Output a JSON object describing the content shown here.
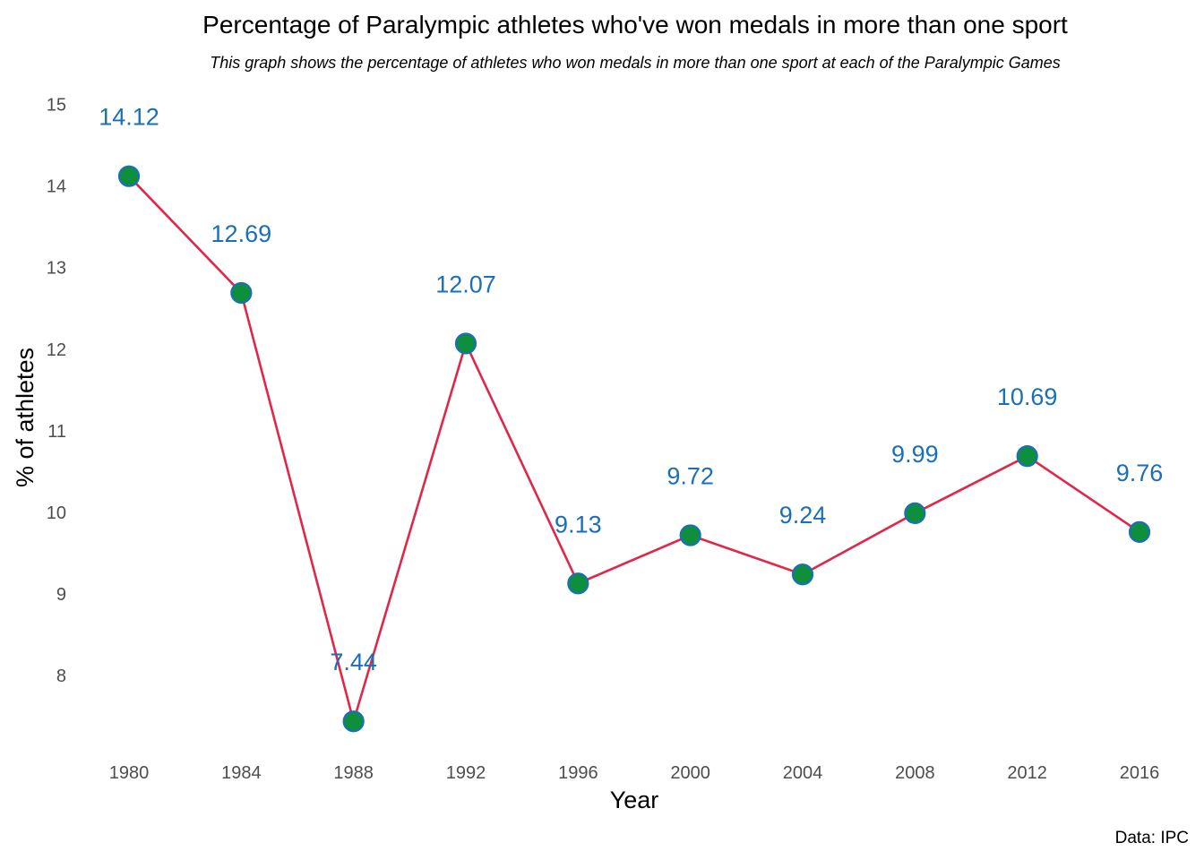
{
  "chart_data": {
    "type": "line",
    "title": "Percentage of Paralympic athletes who've won medals in more than one sport",
    "subtitle": "This graph shows the percentage of athletes who won medals in more than one sport at each of the Paralympic Games",
    "xlabel": "Year",
    "ylabel": "% of athletes",
    "caption": "Data: IPC",
    "categories": [
      "1980",
      "1984",
      "1988",
      "1992",
      "1996",
      "2000",
      "2004",
      "2008",
      "2012",
      "2016"
    ],
    "values": [
      14.12,
      12.69,
      7.44,
      12.07,
      9.13,
      9.72,
      9.24,
      9.99,
      10.69,
      9.76
    ],
    "data_labels": [
      "14.12",
      "12.69",
      "7.44",
      "12.07",
      "9.13",
      "9.72",
      "9.24",
      "9.99",
      "10.69",
      "9.76"
    ],
    "y_ticks": [
      8,
      9,
      10,
      11,
      12,
      13,
      14,
      15
    ],
    "ylim": [
      7.1,
      15.2
    ],
    "grid": false,
    "legend": "none",
    "colors": {
      "line": "#E0274A",
      "point_fill": "#0E8F3C",
      "point_stroke": "#1A6FB8",
      "label": "#1A6FB8"
    }
  }
}
